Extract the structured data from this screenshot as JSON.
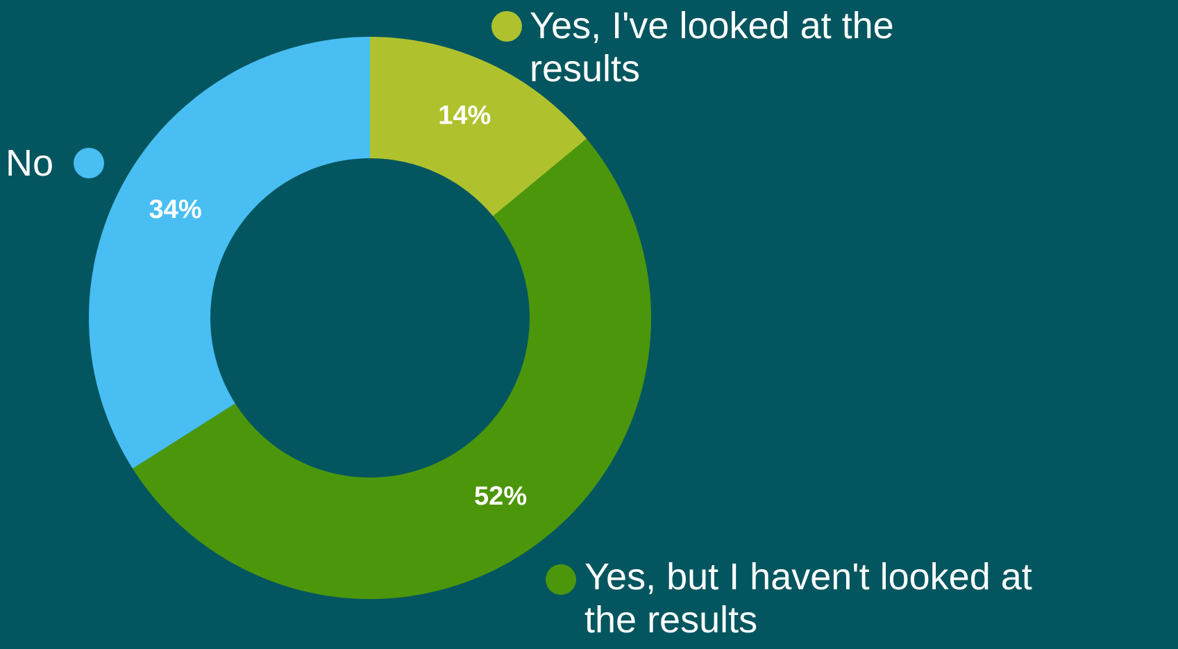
{
  "chart_data": {
    "type": "pie",
    "donut": true,
    "series": [
      {
        "name": "Yes, I've looked at the results",
        "value": 14,
        "label": "14%",
        "color": "#afc22e"
      },
      {
        "name": "Yes, but I haven't looked at the results",
        "value": 52,
        "label": "52%",
        "color": "#4c960b"
      },
      {
        "name": "No",
        "value": 34,
        "label": "34%",
        "color": "#49bef3"
      }
    ],
    "legend_placement": "around-chart"
  },
  "legend": {
    "looked_line1": "Yes, I've looked at the",
    "looked_line2": "results",
    "no": "No",
    "not_looked_line1": "Yes, but I haven't looked at",
    "not_looked_line2": "the results"
  },
  "colors": {
    "background": "#03565f",
    "label_text": "#ffffff"
  }
}
